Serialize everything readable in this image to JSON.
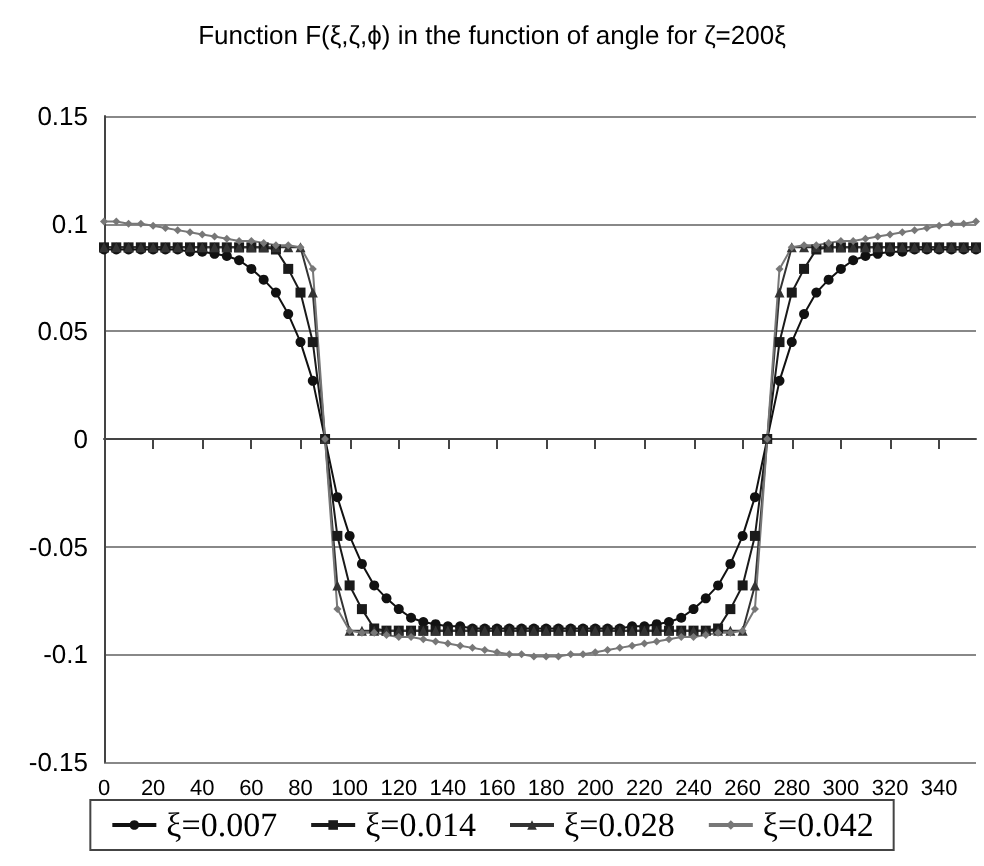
{
  "chart_data": {
    "type": "line",
    "title": "Function F(ξ,ζ,ϕ) in the function of angle for ζ=200ξ",
    "x": [
      0,
      5,
      10,
      15,
      20,
      25,
      30,
      35,
      40,
      45,
      50,
      55,
      60,
      65,
      70,
      75,
      80,
      85,
      90,
      95,
      100,
      105,
      110,
      115,
      120,
      125,
      130,
      135,
      140,
      145,
      150,
      155,
      160,
      165,
      170,
      175,
      180,
      185,
      190,
      195,
      200,
      205,
      210,
      215,
      220,
      225,
      230,
      235,
      240,
      245,
      250,
      255,
      260,
      265,
      270,
      275,
      280,
      285,
      290,
      295,
      300,
      305,
      310,
      315,
      320,
      325,
      330,
      335,
      340,
      345,
      350,
      355
    ],
    "series": [
      {
        "name": "ξ=0.007",
        "color": "#111111",
        "marker": "circle",
        "values": [
          0.088,
          0.088,
          0.088,
          0.088,
          0.088,
          0.088,
          0.088,
          0.087,
          0.087,
          0.086,
          0.085,
          0.083,
          0.079,
          0.074,
          0.068,
          0.058,
          0.045,
          0.027,
          0,
          -0.027,
          -0.045,
          -0.058,
          -0.068,
          -0.074,
          -0.079,
          -0.083,
          -0.085,
          -0.086,
          -0.087,
          -0.087,
          -0.088,
          -0.088,
          -0.088,
          -0.088,
          -0.088,
          -0.088,
          -0.088,
          -0.088,
          -0.088,
          -0.088,
          -0.088,
          -0.088,
          -0.088,
          -0.087,
          -0.087,
          -0.086,
          -0.085,
          -0.083,
          -0.079,
          -0.074,
          -0.068,
          -0.058,
          -0.045,
          -0.027,
          0,
          0.027,
          0.045,
          0.058,
          0.068,
          0.074,
          0.079,
          0.083,
          0.085,
          0.086,
          0.087,
          0.087,
          0.088,
          0.088,
          0.088,
          0.088,
          0.088,
          0.088
        ]
      },
      {
        "name": "ξ=0.014",
        "color": "#1a1a1a",
        "marker": "square",
        "values": [
          0.089,
          0.089,
          0.089,
          0.089,
          0.089,
          0.089,
          0.089,
          0.089,
          0.089,
          0.089,
          0.089,
          0.089,
          0.089,
          0.089,
          0.088,
          0.079,
          0.068,
          0.045,
          0,
          -0.045,
          -0.068,
          -0.079,
          -0.088,
          -0.089,
          -0.089,
          -0.089,
          -0.089,
          -0.089,
          -0.089,
          -0.089,
          -0.089,
          -0.089,
          -0.089,
          -0.089,
          -0.089,
          -0.089,
          -0.089,
          -0.089,
          -0.089,
          -0.089,
          -0.089,
          -0.089,
          -0.089,
          -0.089,
          -0.089,
          -0.089,
          -0.089,
          -0.089,
          -0.089,
          -0.089,
          -0.088,
          -0.079,
          -0.068,
          -0.045,
          0,
          0.045,
          0.068,
          0.079,
          0.088,
          0.089,
          0.089,
          0.089,
          0.089,
          0.089,
          0.089,
          0.089,
          0.089,
          0.089,
          0.089,
          0.089,
          0.089,
          0.089
        ]
      },
      {
        "name": "ξ=0.028",
        "color": "#333333",
        "marker": "triangle",
        "values": [
          0.089,
          0.089,
          0.089,
          0.089,
          0.089,
          0.089,
          0.089,
          0.089,
          0.089,
          0.089,
          0.089,
          0.089,
          0.089,
          0.089,
          0.089,
          0.089,
          0.089,
          0.068,
          0,
          -0.068,
          -0.089,
          -0.089,
          -0.089,
          -0.089,
          -0.089,
          -0.089,
          -0.089,
          -0.089,
          -0.089,
          -0.089,
          -0.089,
          -0.089,
          -0.089,
          -0.089,
          -0.089,
          -0.089,
          -0.089,
          -0.089,
          -0.089,
          -0.089,
          -0.089,
          -0.089,
          -0.089,
          -0.089,
          -0.089,
          -0.089,
          -0.089,
          -0.089,
          -0.089,
          -0.089,
          -0.089,
          -0.089,
          -0.089,
          -0.068,
          0,
          0.068,
          0.089,
          0.089,
          0.089,
          0.089,
          0.089,
          0.089,
          0.089,
          0.089,
          0.089,
          0.089,
          0.089,
          0.089,
          0.089,
          0.089,
          0.089,
          0.089
        ]
      },
      {
        "name": "ξ=0.042",
        "color": "#777777",
        "marker": "diamond",
        "values": [
          0.101,
          0.101,
          0.1,
          0.1,
          0.099,
          0.098,
          0.097,
          0.096,
          0.095,
          0.094,
          0.093,
          0.092,
          0.092,
          0.091,
          0.09,
          0.09,
          0.089,
          0.079,
          0,
          -0.079,
          -0.089,
          -0.09,
          -0.09,
          -0.091,
          -0.092,
          -0.092,
          -0.093,
          -0.094,
          -0.095,
          -0.096,
          -0.097,
          -0.098,
          -0.099,
          -0.1,
          -0.1,
          -0.101,
          -0.101,
          -0.101,
          -0.1,
          -0.1,
          -0.099,
          -0.098,
          -0.097,
          -0.096,
          -0.095,
          -0.094,
          -0.093,
          -0.092,
          -0.092,
          -0.091,
          -0.09,
          -0.09,
          -0.089,
          -0.079,
          0,
          0.079,
          0.089,
          0.09,
          0.09,
          0.091,
          0.092,
          0.092,
          0.093,
          0.094,
          0.095,
          0.096,
          0.097,
          0.098,
          0.099,
          0.1,
          0.1,
          0.101
        ]
      }
    ],
    "xlim": [
      0,
      355
    ],
    "xticks": [
      0,
      20,
      40,
      60,
      80,
      100,
      120,
      140,
      160,
      180,
      200,
      220,
      240,
      260,
      280,
      300,
      320,
      340
    ],
    "ylim": [
      -0.15,
      0.15
    ],
    "yticks": [
      -0.15,
      -0.1,
      -0.05,
      0,
      0.05,
      0.1,
      0.15
    ],
    "grid": "y",
    "legend": "bottom",
    "line_style": "solid"
  }
}
